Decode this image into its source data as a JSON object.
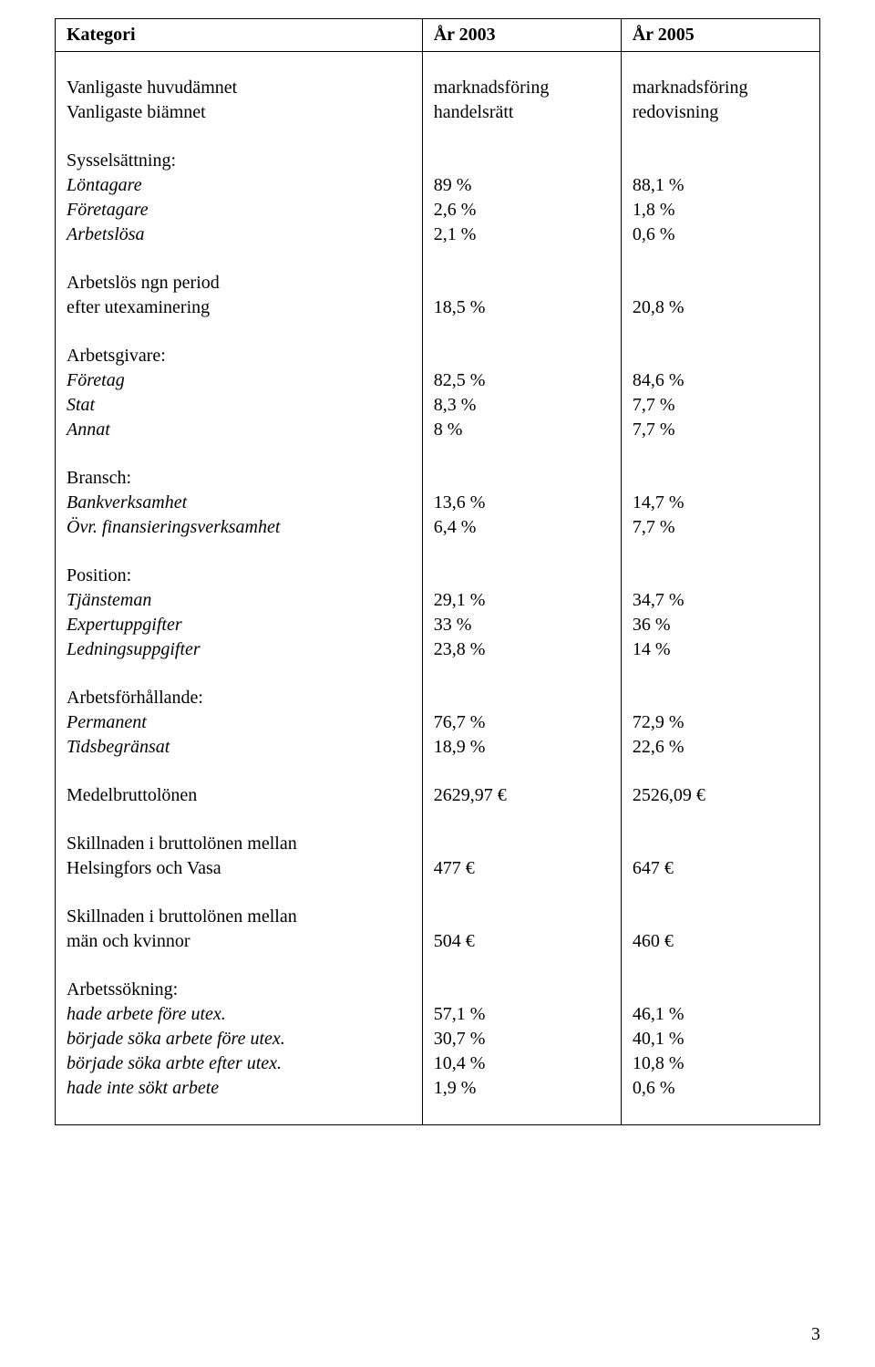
{
  "header": {
    "col1": "Kategori",
    "col2": "År 2003",
    "col3": "År 2005"
  },
  "rows": [
    {
      "label": "Vanligaste huvudämnet",
      "y2003": "marknadsföring",
      "y2005": "marknadsföring"
    },
    {
      "label": "Vanligaste biämnet",
      "y2003": "handelsrätt",
      "y2005": "redovisning"
    }
  ],
  "syssel": {
    "title": "Sysselsättning:",
    "items": [
      {
        "label": "Löntagare",
        "y2003": "89 %",
        "y2005": "88,1 %"
      },
      {
        "label": "Företagare",
        "y2003": "2,6 %",
        "y2005": "1,8 %"
      },
      {
        "label": "Arbetslösa",
        "y2003": "2,1 %",
        "y2005": "0,6 %"
      }
    ]
  },
  "arbetslos": {
    "line1": "Arbetslös ngn period",
    "line2": "efter utexaminering",
    "y2003": "18,5 %",
    "y2005": "20,8 %"
  },
  "arbetsgivare": {
    "title": "Arbetsgivare:",
    "items": [
      {
        "label": "Företag",
        "y2003": "82,5 %",
        "y2005": "84,6 %"
      },
      {
        "label": "Stat",
        "y2003": "8,3 %",
        "y2005": "7,7 %"
      },
      {
        "label": "Annat",
        "y2003": "8 %",
        "y2005": "7,7 %"
      }
    ]
  },
  "bransch": {
    "title": "Bransch:",
    "items": [
      {
        "label": "Bankverksamhet",
        "y2003": "13,6 %",
        "y2005": "14,7 %"
      },
      {
        "label": "Övr. finansieringsverksamhet",
        "y2003": "6,4 %",
        "y2005": "7,7 %"
      }
    ]
  },
  "position": {
    "title": "Position:",
    "items": [
      {
        "label": "Tjänsteman",
        "y2003": "29,1 %",
        "y2005": "34,7 %"
      },
      {
        "label": "Expertuppgifter",
        "y2003": "33 %",
        "y2005": "36 %"
      },
      {
        "label": "Ledningsuppgifter",
        "y2003": "23,8 %",
        "y2005": "14 %"
      }
    ]
  },
  "arbetsforh": {
    "title": "Arbetsförhållande:",
    "items": [
      {
        "label": "Permanent",
        "y2003": "76,7 %",
        "y2005": "72,9 %"
      },
      {
        "label": "Tidsbegränsat",
        "y2003": "18,9 %",
        "y2005": "22,6 %"
      }
    ]
  },
  "medel": {
    "label": "Medelbruttolönen",
    "y2003": "2629,97 €",
    "y2005": "2526,09 €"
  },
  "skill1": {
    "line1": "Skillnaden i bruttolönen mellan",
    "line2": "Helsingfors och Vasa",
    "y2003": "477 €",
    "y2005": "647 €"
  },
  "skill2": {
    "line1": "Skillnaden i bruttolönen mellan",
    "line2": "män och kvinnor",
    "y2003": "504 €",
    "y2005": "460 €"
  },
  "arbetssok": {
    "title": "Arbetssökning:",
    "items": [
      {
        "label": "hade arbete före utex.",
        "y2003": "57,1 %",
        "y2005": "46,1 %"
      },
      {
        "label": "började söka arbete före utex.",
        "y2003": "30,7 %",
        "y2005": "40,1 %"
      },
      {
        "label": "började söka arbte efter utex.",
        "y2003": "10,4 %",
        "y2005": "10,8 %"
      },
      {
        "label": "hade inte sökt arbete",
        "y2003": "1,9 %",
        "y2005": "0,6 %"
      }
    ]
  },
  "page_number": "3"
}
